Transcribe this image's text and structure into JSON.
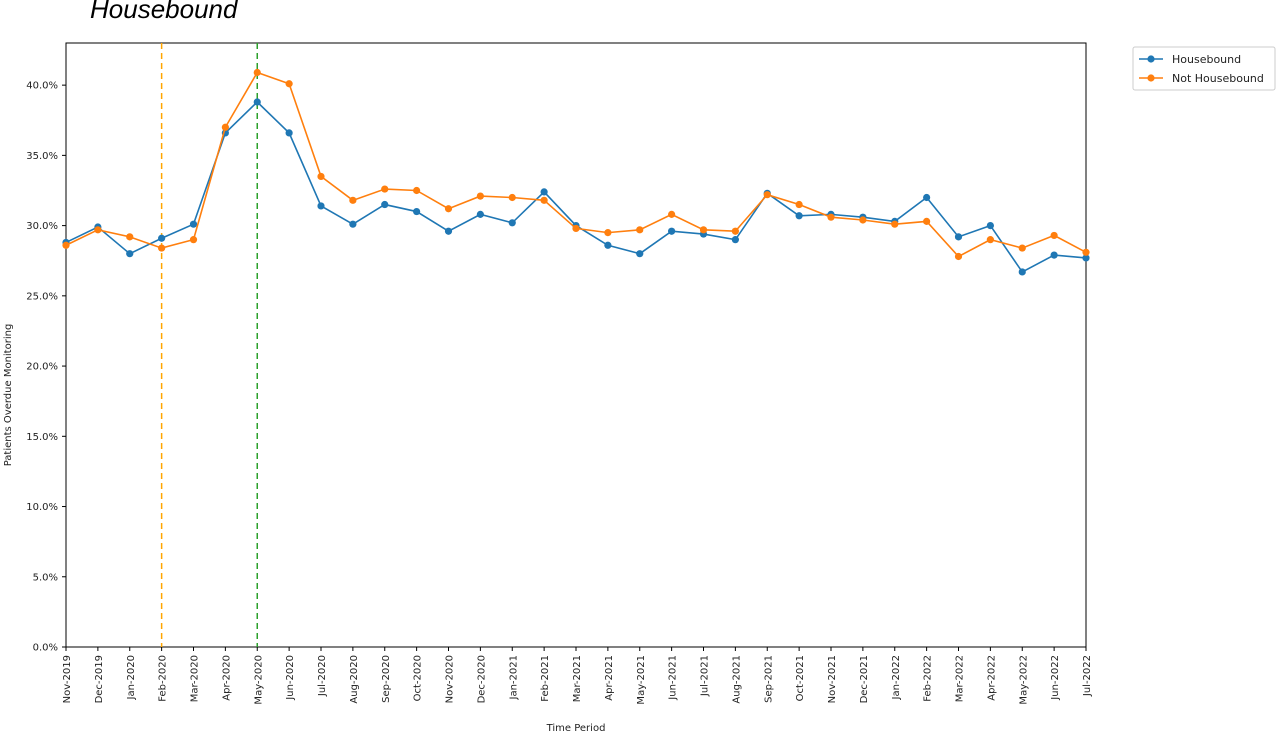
{
  "page": {
    "title": "Housebound"
  },
  "colors": {
    "housebound": "#1f77b4",
    "not_housebound": "#ff7f0e",
    "vline_orange": "#ffa500",
    "vline_green": "#2ca02c"
  },
  "chart_data": {
    "type": "line",
    "title": "",
    "xlabel": "Time Period",
    "ylabel": "Patients Overdue Monitoring",
    "ylim": [
      0,
      0.43
    ],
    "y_tick_values": [
      0,
      0.05,
      0.1,
      0.15,
      0.2,
      0.25,
      0.3,
      0.35,
      0.4
    ],
    "y_tick_labels": [
      "0.0%",
      "5.0%",
      "10.0%",
      "15.0%",
      "20.0%",
      "25.0%",
      "30.0%",
      "35.0%",
      "40.0%"
    ],
    "categories": [
      "Nov-2019",
      "Dec-2019",
      "Jan-2020",
      "Feb-2020",
      "Mar-2020",
      "Apr-2020",
      "May-2020",
      "Jun-2020",
      "Jul-2020",
      "Aug-2020",
      "Sep-2020",
      "Oct-2020",
      "Nov-2020",
      "Dec-2020",
      "Jan-2021",
      "Feb-2021",
      "Mar-2021",
      "Apr-2021",
      "May-2021",
      "Jun-2021",
      "Jul-2021",
      "Aug-2021",
      "Sep-2021",
      "Oct-2021",
      "Nov-2021",
      "Dec-2021",
      "Jan-2022",
      "Feb-2022",
      "Mar-2022",
      "Apr-2022",
      "May-2022",
      "Jun-2022",
      "Jul-2022"
    ],
    "series": [
      {
        "name": "Housebound",
        "color": "#1f77b4",
        "values": [
          0.288,
          0.299,
          0.28,
          0.291,
          0.301,
          0.366,
          0.388,
          0.366,
          0.314,
          0.301,
          0.315,
          0.31,
          0.296,
          0.308,
          0.302,
          0.324,
          0.3,
          0.286,
          0.28,
          0.296,
          0.294,
          0.29,
          0.323,
          0.307,
          0.308,
          0.306,
          0.303,
          0.32,
          0.292,
          0.3,
          0.267,
          0.279,
          0.277
        ]
      },
      {
        "name": "Not Housebound",
        "color": "#ff7f0e",
        "values": [
          0.286,
          0.297,
          0.292,
          0.284,
          0.29,
          0.37,
          0.409,
          0.401,
          0.335,
          0.318,
          0.326,
          0.325,
          0.312,
          0.321,
          0.32,
          0.318,
          0.298,
          0.295,
          0.297,
          0.308,
          0.297,
          0.296,
          0.322,
          0.315,
          0.306,
          0.304,
          0.301,
          0.303,
          0.278,
          0.29,
          0.284,
          0.293,
          0.281
        ]
      }
    ],
    "vertical_lines": [
      {
        "at": "Feb-2020",
        "color": "#ffa500",
        "style": "dashed"
      },
      {
        "at": "May-2020",
        "color": "#2ca02c",
        "style": "dashed"
      }
    ],
    "legend_position": "outside-top-right",
    "grid": false
  }
}
